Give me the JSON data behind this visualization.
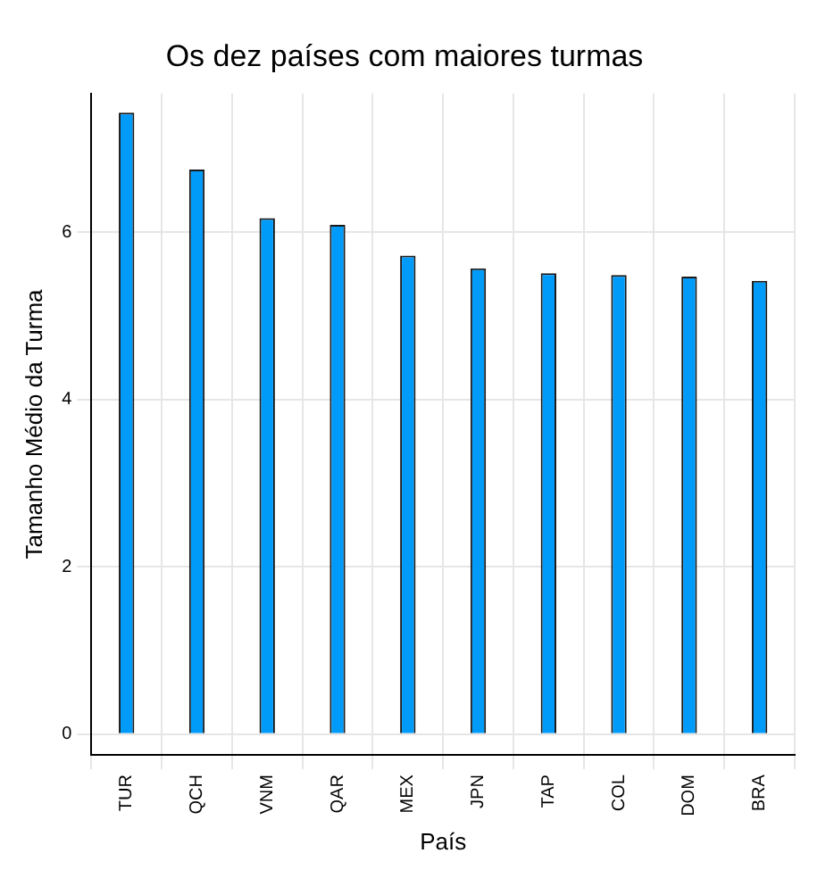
{
  "chart_data": {
    "type": "bar",
    "title": "Os dez países com maiores turmas",
    "xlabel": "País",
    "ylabel": "Tamanho Médio da Turma",
    "categories": [
      "TUR",
      "QCH",
      "VNM",
      "QAR",
      "MEX",
      "JPN",
      "TAP",
      "COL",
      "DOM",
      "BRA"
    ],
    "values": [
      7.43,
      6.75,
      6.17,
      6.09,
      5.72,
      5.57,
      5.51,
      5.49,
      5.47,
      5.42
    ],
    "color": "#009af9",
    "ylim": [
      -0.25,
      7.66
    ],
    "yticks": [
      0,
      2,
      4,
      6
    ],
    "grid": true,
    "legend": false
  }
}
